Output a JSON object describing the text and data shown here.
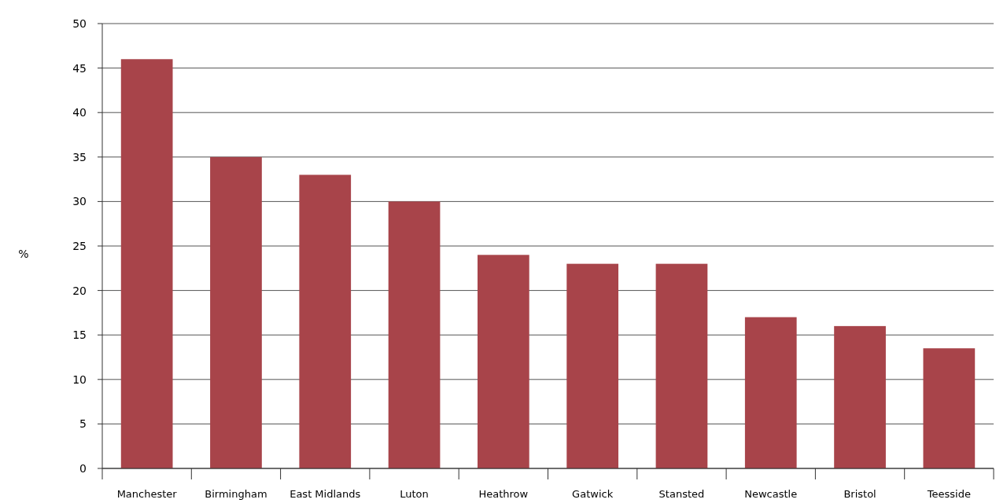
{
  "chart_data": {
    "type": "bar",
    "ylabel": "%",
    "categories": [
      "Manchester",
      "Birmingham",
      "East Midlands",
      "Luton",
      "Heathrow",
      "Gatwick",
      "Stansted",
      "Newcastle",
      "Bristol",
      "Teesside"
    ],
    "values": [
      46,
      35,
      33,
      30,
      24,
      23,
      23,
      17,
      16,
      13.5
    ],
    "color": "#a8444a",
    "ylim": [
      0,
      50
    ],
    "yticks": [
      0,
      5,
      10,
      15,
      20,
      25,
      30,
      35,
      40,
      45,
      50
    ],
    "grid": "y"
  }
}
